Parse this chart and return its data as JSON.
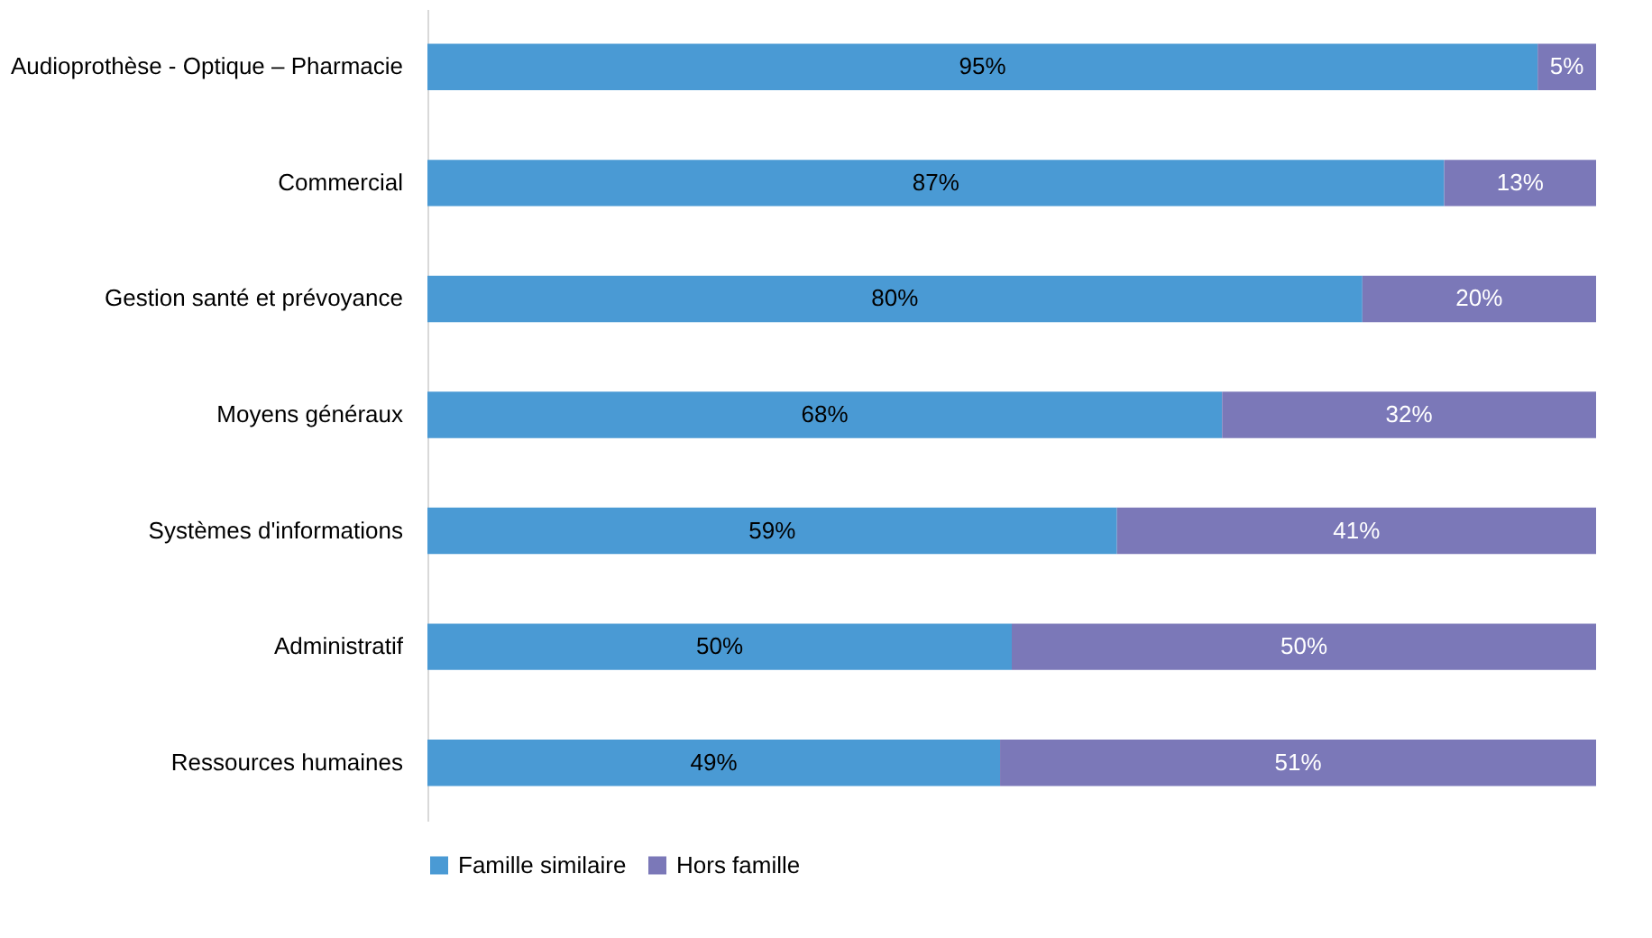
{
  "chart_data": {
    "type": "bar",
    "orientation": "horizontal",
    "stacked": true,
    "legend": "bottom",
    "tick_labels": "y",
    "xlim": [
      0,
      100
    ],
    "categories": [
      "Audioprothèse - Optique – Pharmacie",
      "Commercial",
      "Gestion santé et prévoyance",
      "Moyens généraux",
      "Systèmes d'informations",
      "Administratif",
      "Ressources humaines"
    ],
    "series": [
      {
        "name": "Famille similaire",
        "color": "#4a9ad4",
        "values": [
          95,
          87,
          80,
          68,
          59,
          50,
          49
        ],
        "value_labels": [
          "95%",
          "87%",
          "80%",
          "68%",
          "59%",
          "50%",
          "49%"
        ]
      },
      {
        "name": "Hors famille",
        "color": "#7b78b8",
        "values": [
          5,
          13,
          20,
          32,
          41,
          50,
          51
        ],
        "value_labels": [
          "5%",
          "13%",
          "20%",
          "32%",
          "41%",
          "50%",
          "51%"
        ]
      }
    ]
  }
}
